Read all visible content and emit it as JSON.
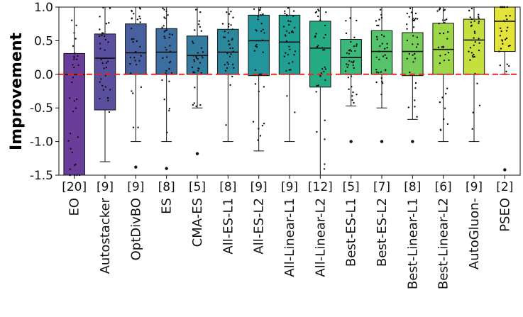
{
  "chart_data": {
    "type": "box",
    "ylabel": "Improvement",
    "ylim": [
      -1.5,
      1.0
    ],
    "yticks": [
      "-1.5",
      "-1.0",
      "-0.5",
      "0.0",
      "0.5",
      "1.0"
    ],
    "ytick_values": [
      -1.5,
      -1.0,
      -0.5,
      0.0,
      0.5,
      1.0
    ],
    "reference_line": {
      "y": 0.0,
      "color": "#e8251f",
      "style": "dashed"
    },
    "categories": [
      {
        "name": "EO",
        "count": "[20]",
        "color": "#6a3d9a",
        "q1": -1.5,
        "median": 0.0,
        "q3": 0.31,
        "whisker_low": -1.5,
        "whisker_high": 1.0,
        "outliers": []
      },
      {
        "name": "Autostacker",
        "count": "[9]",
        "color": "#5a4f9e",
        "q1": -0.53,
        "median": 0.24,
        "q3": 0.6,
        "whisker_low": -1.3,
        "whisker_high": 1.0,
        "outliers": []
      },
      {
        "name": "OptDivBO",
        "count": "[9]",
        "color": "#485fa0",
        "q1": 0.0,
        "median": 0.32,
        "q3": 0.75,
        "whisker_low": -1.0,
        "whisker_high": 1.0,
        "outliers": [
          -1.38
        ]
      },
      {
        "name": "ES",
        "count": "[8]",
        "color": "#3d6ea1",
        "q1": 0.0,
        "median": 0.33,
        "q3": 0.68,
        "whisker_low": -1.0,
        "whisker_high": 1.0,
        "outliers": [
          -1.4
        ]
      },
      {
        "name": "CMA-ES",
        "count": "[5]",
        "color": "#337c9f",
        "q1": 0.0,
        "median": 0.28,
        "q3": 0.57,
        "whisker_low": -0.5,
        "whisker_high": 1.0,
        "outliers": [
          -1.18
        ]
      },
      {
        "name": "All-ES-L1",
        "count": "[8]",
        "color": "#2b889d",
        "q1": 0.0,
        "median": 0.33,
        "q3": 0.67,
        "whisker_low": -1.0,
        "whisker_high": 1.0,
        "outliers": []
      },
      {
        "name": "All-ES-L2",
        "count": "[9]",
        "color": "#22949b",
        "q1": -0.02,
        "median": 0.5,
        "q3": 0.88,
        "whisker_low": -1.14,
        "whisker_high": 1.0,
        "outliers": []
      },
      {
        "name": "All-Linear-L1",
        "count": "[9]",
        "color": "#1fa092",
        "q1": 0.0,
        "median": 0.48,
        "q3": 0.88,
        "whisker_low": -1.0,
        "whisker_high": 1.0,
        "outliers": []
      },
      {
        "name": "All-Linear-L2",
        "count": "[12]",
        "color": "#26ac83",
        "q1": -0.19,
        "median": 0.39,
        "q3": 0.79,
        "whisker_low": -1.5,
        "whisker_high": 1.0,
        "outliers": []
      },
      {
        "name": "Best-ES-L1",
        "count": "[5]",
        "color": "#3bb87a",
        "q1": 0.0,
        "median": 0.25,
        "q3": 0.52,
        "whisker_low": -0.47,
        "whisker_high": 1.0,
        "outliers": [
          -1.0
        ]
      },
      {
        "name": "Best-ES-L2",
        "count": "[7]",
        "color": "#55c36b",
        "q1": 0.0,
        "median": 0.34,
        "q3": 0.65,
        "whisker_low": -0.5,
        "whisker_high": 1.0,
        "outliers": [
          -1.0
        ]
      },
      {
        "name": "Best-Linear-L1",
        "count": "[8]",
        "color": "#78cd5b",
        "q1": -0.02,
        "median": 0.34,
        "q3": 0.62,
        "whisker_low": -0.67,
        "whisker_high": 1.0,
        "outliers": [
          -1.0
        ]
      },
      {
        "name": "Best-Linear-L2",
        "count": "[6]",
        "color": "#9ed64a",
        "q1": 0.0,
        "median": 0.37,
        "q3": 0.76,
        "whisker_low": -1.0,
        "whisker_high": 1.0,
        "outliers": []
      },
      {
        "name": "AutoGluon-",
        "count": "[9]",
        "color": "#c4df3e",
        "q1": 0.0,
        "median": 0.51,
        "q3": 0.82,
        "whisker_low": -1.0,
        "whisker_high": 1.0,
        "outliers": []
      },
      {
        "name": "PSEO",
        "count": "[2]",
        "color": "#e3e33a",
        "q1": 0.34,
        "median": 0.79,
        "q3": 1.0,
        "whisker_low": 0.0,
        "whisker_high": 1.0,
        "outliers": [
          -1.42
        ]
      }
    ]
  }
}
